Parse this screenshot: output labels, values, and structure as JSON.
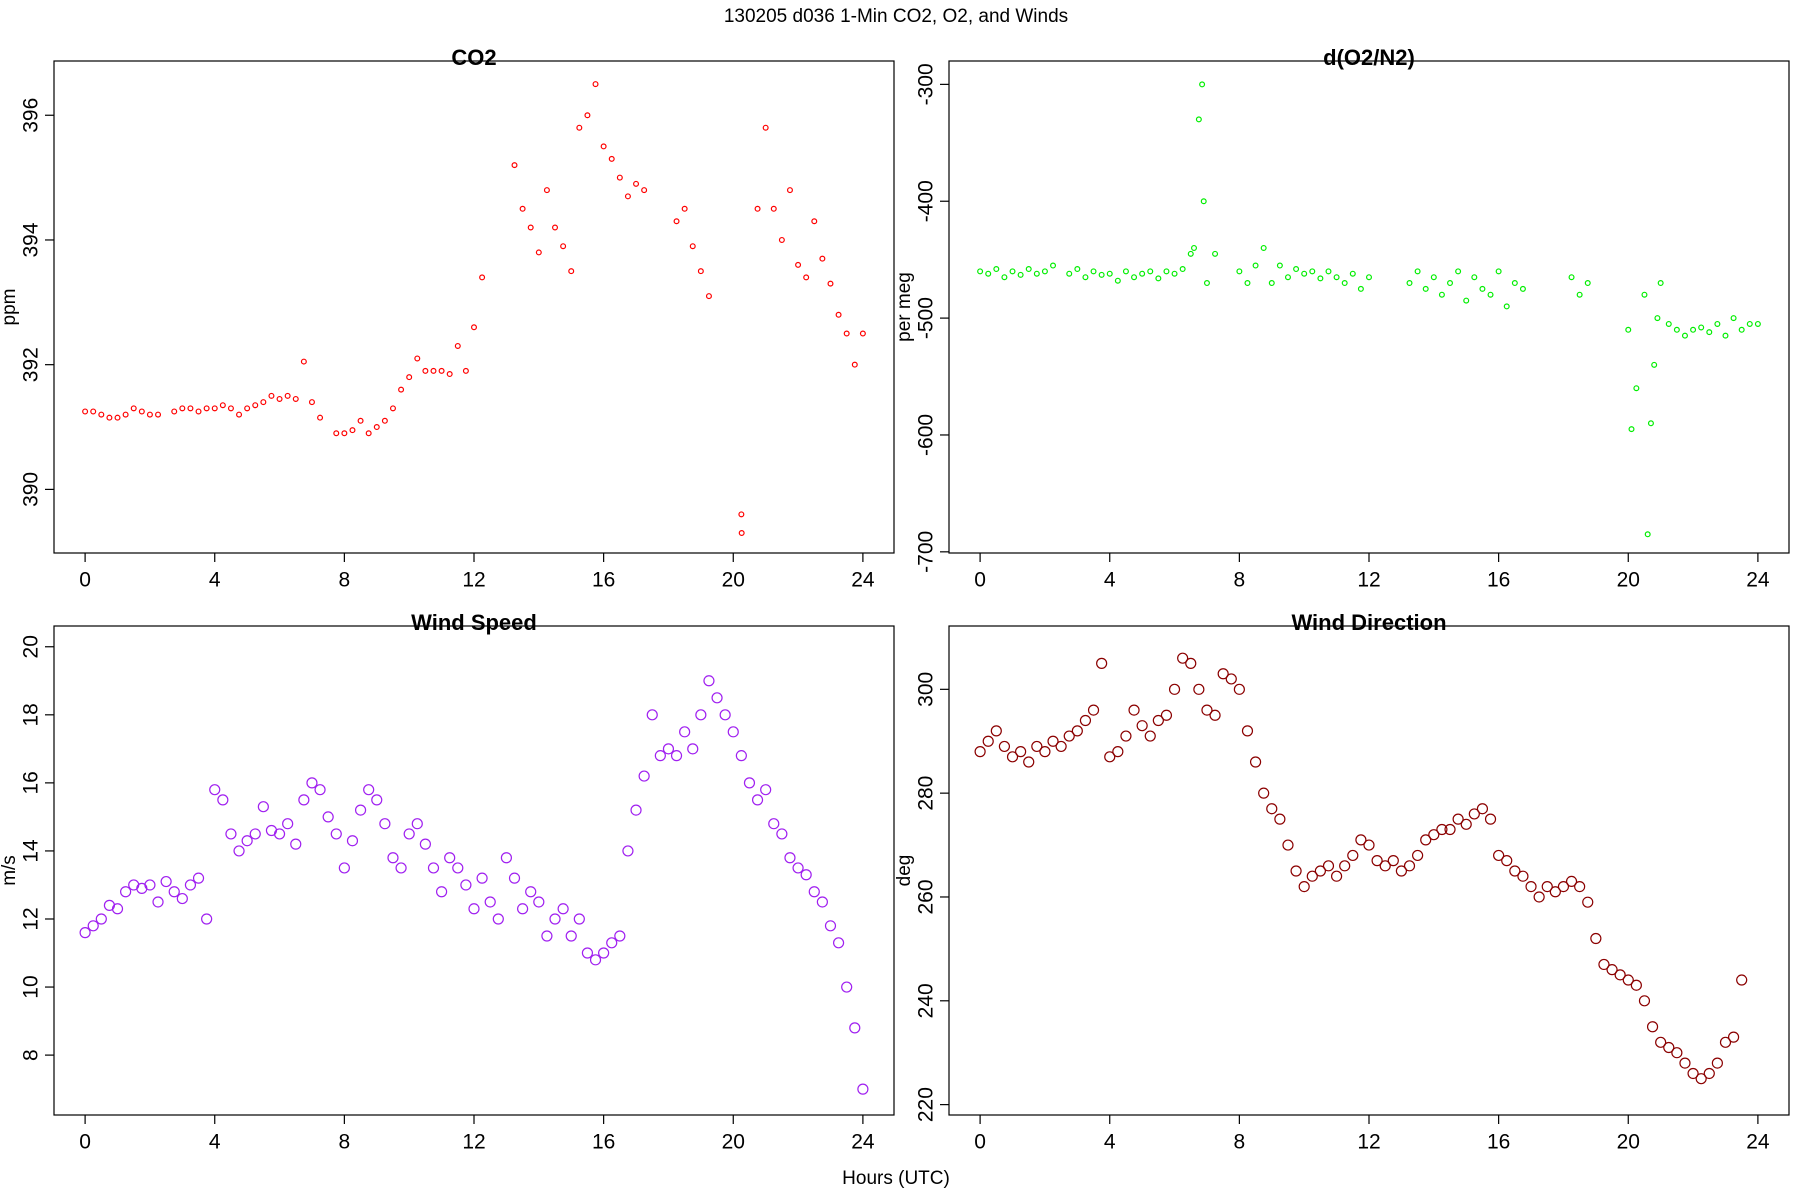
{
  "title": "130205   d036   1-Min CO2, O2, and Winds",
  "x_label": "Hours (UTC)",
  "chart_data": [
    {
      "type": "scatter",
      "title": "CO2",
      "y_label": "ppm",
      "color": "#ff0000",
      "xlim": [
        -0.96,
        24.96
      ],
      "xticks": [
        0,
        4,
        8,
        12,
        16,
        20,
        24
      ],
      "ylim": [
        388.98,
        396.87
      ],
      "yticks": [
        390,
        392,
        394,
        396
      ],
      "x": [
        0,
        0.25,
        0.5,
        0.75,
        1,
        1.25,
        1.5,
        1.75,
        2,
        2.25,
        2.75,
        3,
        3.25,
        3.5,
        3.75,
        4,
        4.25,
        4.5,
        4.75,
        5,
        5.25,
        5.5,
        5.75,
        6,
        6.25,
        6.5,
        6.75,
        7,
        7.25,
        7.75,
        8,
        8.25,
        8.5,
        8.75,
        9,
        9.25,
        9.5,
        9.75,
        10,
        10.25,
        10.5,
        10.75,
        11,
        11.25,
        11.5,
        11.75,
        12,
        12.25,
        13.25,
        13.5,
        13.75,
        14,
        14.25,
        14.5,
        14.75,
        15,
        15.25,
        15.5,
        15.75,
        16,
        16.25,
        16.5,
        16.75,
        17,
        17.25,
        18.25,
        18.5,
        18.75,
        19,
        19.25,
        20.25,
        20.26,
        20.75,
        21,
        21.25,
        21.5,
        21.75,
        22,
        22.25,
        22.5,
        22.75,
        23,
        23.25,
        23.5,
        23.75,
        24
      ],
      "values": [
        391.25,
        391.25,
        391.2,
        391.15,
        391.15,
        391.2,
        391.3,
        391.25,
        391.2,
        391.2,
        391.25,
        391.3,
        391.3,
        391.25,
        391.3,
        391.3,
        391.35,
        391.3,
        391.2,
        391.3,
        391.35,
        391.4,
        391.5,
        391.45,
        391.5,
        391.45,
        392.05,
        391.4,
        391.15,
        390.9,
        390.9,
        390.95,
        391.1,
        390.9,
        391.0,
        391.1,
        391.3,
        391.6,
        391.8,
        392.1,
        391.9,
        391.9,
        391.9,
        391.85,
        392.3,
        391.9,
        392.6,
        393.4,
        395.2,
        394.5,
        394.2,
        393.8,
        394.8,
        394.2,
        393.9,
        393.5,
        395.8,
        396.0,
        396.5,
        395.5,
        395.3,
        395.0,
        394.7,
        394.9,
        394.8,
        394.3,
        394.5,
        393.9,
        393.5,
        393.1,
        389.6,
        389.3,
        394.5,
        395.8,
        394.5,
        394.0,
        394.8,
        393.6,
        393.4,
        394.3,
        393.7,
        393.3,
        392.8,
        392.5,
        392.0,
        392.5
      ]
    },
    {
      "type": "scatter",
      "title": "d(O2/N2)",
      "y_label": "per meg",
      "color": "#00ee00",
      "xlim": [
        -0.96,
        24.96
      ],
      "xticks": [
        0,
        4,
        8,
        12,
        16,
        20,
        24
      ],
      "ylim": [
        -701,
        -280
      ],
      "yticks": [
        -700,
        -600,
        -500,
        -400,
        -300
      ],
      "x": [
        0,
        0.25,
        0.5,
        0.75,
        1,
        1.25,
        1.5,
        1.75,
        2,
        2.25,
        2.75,
        3,
        3.25,
        3.5,
        3.75,
        4,
        4.25,
        4.5,
        4.75,
        5,
        5.25,
        5.5,
        5.75,
        6,
        6.25,
        6.5,
        6.6,
        6.75,
        6.85,
        6.9,
        7,
        7.25,
        8,
        8.25,
        8.5,
        8.75,
        9,
        9.25,
        9.5,
        9.75,
        10,
        10.25,
        10.5,
        10.75,
        11,
        11.25,
        11.5,
        11.75,
        12,
        13.25,
        13.5,
        13.75,
        14,
        14.25,
        14.5,
        14.75,
        15,
        15.25,
        15.5,
        15.75,
        16,
        16.25,
        16.5,
        16.75,
        18.25,
        18.5,
        18.75,
        20,
        20.1,
        20.25,
        20.5,
        20.6,
        20.7,
        20.8,
        20.9,
        21,
        21.25,
        21.5,
        21.75,
        22,
        22.25,
        22.5,
        22.75,
        23,
        23.25,
        23.5,
        23.75,
        24
      ],
      "values": [
        -460,
        -462,
        -458,
        -465,
        -460,
        -463,
        -458,
        -462,
        -460,
        -455,
        -462,
        -458,
        -465,
        -460,
        -463,
        -462,
        -468,
        -460,
        -465,
        -462,
        -460,
        -466,
        -460,
        -462,
        -458,
        -445,
        -440,
        -330,
        -300,
        -400,
        -470,
        -445,
        -460,
        -470,
        -455,
        -440,
        -470,
        -455,
        -465,
        -458,
        -462,
        -460,
        -466,
        -460,
        -465,
        -470,
        -462,
        -475,
        -465,
        -470,
        -460,
        -475,
        -465,
        -480,
        -470,
        -460,
        -485,
        -465,
        -475,
        -480,
        -460,
        -490,
        -470,
        -475,
        -465,
        -480,
        -470,
        -510,
        -595,
        -560,
        -480,
        -685,
        -590,
        -540,
        -500,
        -470,
        -505,
        -510,
        -515,
        -510,
        -508,
        -512,
        -505,
        -515,
        -500,
        -510,
        -505,
        -505
      ]
    },
    {
      "type": "scatter",
      "title": "Wind Speed",
      "y_label": "m/s",
      "color": "#a020f0",
      "xlim": [
        -0.96,
        24.96
      ],
      "xticks": [
        0,
        4,
        8,
        12,
        16,
        20,
        24
      ],
      "ylim": [
        6.24,
        20.61
      ],
      "yticks": [
        8,
        10,
        12,
        14,
        16,
        18,
        20
      ],
      "x": [
        0,
        0.25,
        0.5,
        0.75,
        1,
        1.25,
        1.5,
        1.75,
        2,
        2.25,
        2.5,
        2.75,
        3,
        3.25,
        3.5,
        3.75,
        4,
        4.25,
        4.5,
        4.75,
        5,
        5.25,
        5.5,
        5.75,
        6,
        6.25,
        6.5,
        6.75,
        7,
        7.25,
        7.5,
        7.75,
        8,
        8.25,
        8.5,
        8.75,
        9,
        9.25,
        9.5,
        9.75,
        10,
        10.25,
        10.5,
        10.75,
        11,
        11.25,
        11.5,
        11.75,
        12,
        12.25,
        12.5,
        12.75,
        13,
        13.25,
        13.5,
        13.75,
        14,
        14.25,
        14.5,
        14.75,
        15,
        15.25,
        15.5,
        15.75,
        16,
        16.25,
        16.5,
        16.75,
        17,
        17.25,
        17.5,
        17.75,
        18,
        18.25,
        18.5,
        18.75,
        19,
        19.25,
        19.5,
        19.75,
        20,
        20.25,
        20.5,
        20.75,
        21,
        21.25,
        21.5,
        21.75,
        22,
        22.25,
        22.5,
        22.75,
        23,
        23.25,
        23.5,
        23.75,
        24
      ],
      "values": [
        11.6,
        11.8,
        12.0,
        12.4,
        12.3,
        12.8,
        13.0,
        12.9,
        13.0,
        12.5,
        13.1,
        12.8,
        12.6,
        13.0,
        13.2,
        12.0,
        15.8,
        15.5,
        14.5,
        14.0,
        14.3,
        14.5,
        15.3,
        14.6,
        14.5,
        14.8,
        14.2,
        15.5,
        16.0,
        15.8,
        15.0,
        14.5,
        13.5,
        14.3,
        15.2,
        15.8,
        15.5,
        14.8,
        13.8,
        13.5,
        14.5,
        14.8,
        14.2,
        13.5,
        12.8,
        13.8,
        13.5,
        13.0,
        12.3,
        13.2,
        12.5,
        12.0,
        13.8,
        13.2,
        12.3,
        12.8,
        12.5,
        11.5,
        12.0,
        12.3,
        11.5,
        12.0,
        11.0,
        10.8,
        11.0,
        11.3,
        11.5,
        14.0,
        15.2,
        16.2,
        18.0,
        16.8,
        17.0,
        16.8,
        17.5,
        17.0,
        18.0,
        19.0,
        18.5,
        18.0,
        17.5,
        16.8,
        16.0,
        15.5,
        15.8,
        14.8,
        14.5,
        13.8,
        13.5,
        13.3,
        12.8,
        12.5,
        11.8,
        11.3,
        10.0,
        8.8,
        7.0
      ]
    },
    {
      "type": "scatter",
      "title": "Wind Direction",
      "y_label": "deg",
      "color": "#8b0000",
      "xlim": [
        -0.96,
        24.96
      ],
      "xticks": [
        0,
        4,
        8,
        12,
        16,
        20,
        24
      ],
      "ylim": [
        218,
        312.2
      ],
      "yticks": [
        220,
        240,
        260,
        280,
        300
      ],
      "x": [
        0,
        0.25,
        0.5,
        0.75,
        1,
        1.25,
        1.5,
        1.75,
        2,
        2.25,
        2.5,
        2.75,
        3,
        3.25,
        3.5,
        3.75,
        4,
        4.25,
        4.5,
        4.75,
        5,
        5.25,
        5.5,
        5.75,
        6,
        6.25,
        6.5,
        6.75,
        7,
        7.25,
        7.5,
        7.75,
        8,
        8.25,
        8.5,
        8.75,
        9,
        9.25,
        9.5,
        9.75,
        10,
        10.25,
        10.5,
        10.75,
        11,
        11.25,
        11.5,
        11.75,
        12,
        12.25,
        12.5,
        12.75,
        13,
        13.25,
        13.5,
        13.75,
        14,
        14.25,
        14.5,
        14.75,
        15,
        15.25,
        15.5,
        15.75,
        16,
        16.25,
        16.5,
        16.75,
        17,
        17.25,
        17.5,
        17.75,
        18,
        18.25,
        18.5,
        18.75,
        19,
        19.25,
        19.5,
        19.75,
        20,
        20.25,
        20.5,
        20.75,
        21,
        21.25,
        21.5,
        21.75,
        22,
        22.25,
        22.5,
        22.75,
        23,
        23.25,
        23.5
      ],
      "values": [
        288,
        290,
        292,
        289,
        287,
        288,
        286,
        289,
        288,
        290,
        289,
        291,
        292,
        294,
        296,
        305,
        287,
        288,
        291,
        296,
        293,
        291,
        294,
        295,
        300,
        306,
        305,
        300,
        296,
        295,
        303,
        302,
        300,
        292,
        286,
        280,
        277,
        275,
        270,
        265,
        262,
        264,
        265,
        266,
        264,
        266,
        268,
        271,
        270,
        267,
        266,
        267,
        265,
        266,
        268,
        271,
        272,
        273,
        273,
        275,
        274,
        276,
        277,
        275,
        268,
        267,
        265,
        264,
        262,
        260,
        262,
        261,
        262,
        263,
        262,
        259,
        252,
        247,
        246,
        245,
        244,
        243,
        240,
        235,
        232,
        231,
        230,
        228,
        226,
        225,
        226,
        228,
        232,
        233,
        244
      ]
    }
  ]
}
